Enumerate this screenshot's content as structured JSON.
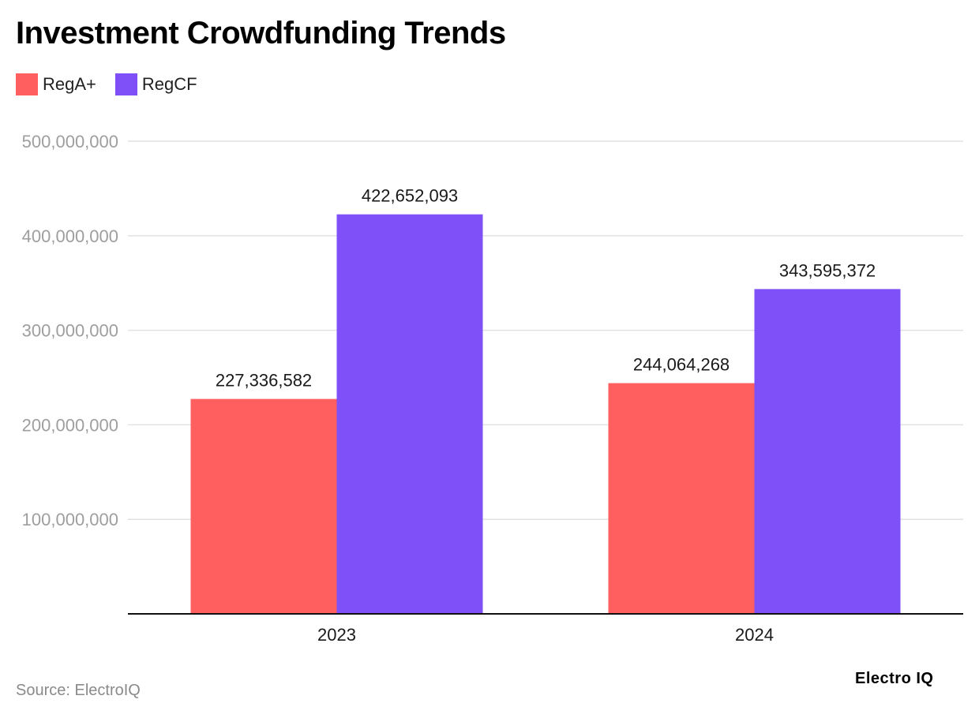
{
  "title": "Investment Crowdfunding Trends",
  "source": "Source: ElectroIQ",
  "brand": "Electro IQ",
  "colors": {
    "RegA+": "#ff5f5f",
    "RegCF": "#7f4ff8",
    "grid": "#e2e2e2",
    "axis": "#111111",
    "tick": "#9e9e9e"
  },
  "chart_data": {
    "type": "bar",
    "title": "Investment Crowdfunding Trends",
    "categories": [
      "2023",
      "2024"
    ],
    "series": [
      {
        "name": "RegA+",
        "values": [
          227336582,
          244064268
        ],
        "labels": [
          "227,336,582",
          "244,064,268"
        ]
      },
      {
        "name": "RegCF",
        "values": [
          422652093,
          343595372
        ],
        "labels": [
          "422,652,093",
          "343,595,372"
        ]
      }
    ],
    "yticks": [
      100000000,
      200000000,
      300000000,
      400000000,
      500000000
    ],
    "ytick_labels": [
      "100,000,000",
      "200,000,000",
      "300,000,000",
      "400,000,000",
      "500,000,000"
    ],
    "ylim": [
      0,
      500000000
    ],
    "xlabel": "",
    "ylabel": "",
    "legend": "top-left",
    "grid": true
  }
}
